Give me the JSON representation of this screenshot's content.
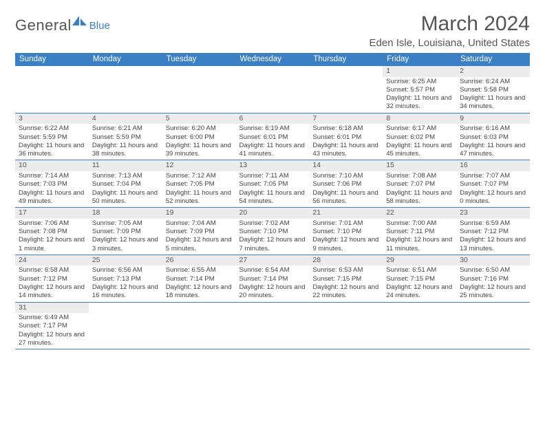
{
  "logo": {
    "general": "General",
    "blue": "Blue"
  },
  "title": "March 2024",
  "location": "Eden Isle, Louisiana, United States",
  "colors": {
    "header_bg": "#3b7fc4",
    "header_text": "#ffffff",
    "daynum_bg": "#ececec",
    "border": "#3b7fc4",
    "text": "#444444",
    "title_color": "#555555"
  },
  "daysOfWeek": [
    "Sunday",
    "Monday",
    "Tuesday",
    "Wednesday",
    "Thursday",
    "Friday",
    "Saturday"
  ],
  "weeks": [
    [
      null,
      null,
      null,
      null,
      null,
      {
        "n": "1",
        "sr": "6:25 AM",
        "ss": "5:57 PM",
        "dl": "11 hours and 32 minutes."
      },
      {
        "n": "2",
        "sr": "6:24 AM",
        "ss": "5:58 PM",
        "dl": "11 hours and 34 minutes."
      }
    ],
    [
      {
        "n": "3",
        "sr": "6:22 AM",
        "ss": "5:59 PM",
        "dl": "11 hours and 36 minutes."
      },
      {
        "n": "4",
        "sr": "6:21 AM",
        "ss": "5:59 PM",
        "dl": "11 hours and 38 minutes."
      },
      {
        "n": "5",
        "sr": "6:20 AM",
        "ss": "6:00 PM",
        "dl": "11 hours and 39 minutes."
      },
      {
        "n": "6",
        "sr": "6:19 AM",
        "ss": "6:01 PM",
        "dl": "11 hours and 41 minutes."
      },
      {
        "n": "7",
        "sr": "6:18 AM",
        "ss": "6:01 PM",
        "dl": "11 hours and 43 minutes."
      },
      {
        "n": "8",
        "sr": "6:17 AM",
        "ss": "6:02 PM",
        "dl": "11 hours and 45 minutes."
      },
      {
        "n": "9",
        "sr": "6:16 AM",
        "ss": "6:03 PM",
        "dl": "11 hours and 47 minutes."
      }
    ],
    [
      {
        "n": "10",
        "sr": "7:14 AM",
        "ss": "7:03 PM",
        "dl": "11 hours and 49 minutes."
      },
      {
        "n": "11",
        "sr": "7:13 AM",
        "ss": "7:04 PM",
        "dl": "11 hours and 50 minutes."
      },
      {
        "n": "12",
        "sr": "7:12 AM",
        "ss": "7:05 PM",
        "dl": "11 hours and 52 minutes."
      },
      {
        "n": "13",
        "sr": "7:11 AM",
        "ss": "7:05 PM",
        "dl": "11 hours and 54 minutes."
      },
      {
        "n": "14",
        "sr": "7:10 AM",
        "ss": "7:06 PM",
        "dl": "11 hours and 56 minutes."
      },
      {
        "n": "15",
        "sr": "7:08 AM",
        "ss": "7:07 PM",
        "dl": "11 hours and 58 minutes."
      },
      {
        "n": "16",
        "sr": "7:07 AM",
        "ss": "7:07 PM",
        "dl": "12 hours and 0 minutes."
      }
    ],
    [
      {
        "n": "17",
        "sr": "7:06 AM",
        "ss": "7:08 PM",
        "dl": "12 hours and 1 minute."
      },
      {
        "n": "18",
        "sr": "7:05 AM",
        "ss": "7:09 PM",
        "dl": "12 hours and 3 minutes."
      },
      {
        "n": "19",
        "sr": "7:04 AM",
        "ss": "7:09 PM",
        "dl": "12 hours and 5 minutes."
      },
      {
        "n": "20",
        "sr": "7:02 AM",
        "ss": "7:10 PM",
        "dl": "12 hours and 7 minutes."
      },
      {
        "n": "21",
        "sr": "7:01 AM",
        "ss": "7:10 PM",
        "dl": "12 hours and 9 minutes."
      },
      {
        "n": "22",
        "sr": "7:00 AM",
        "ss": "7:11 PM",
        "dl": "12 hours and 11 minutes."
      },
      {
        "n": "23",
        "sr": "6:59 AM",
        "ss": "7:12 PM",
        "dl": "12 hours and 13 minutes."
      }
    ],
    [
      {
        "n": "24",
        "sr": "6:58 AM",
        "ss": "7:12 PM",
        "dl": "12 hours and 14 minutes."
      },
      {
        "n": "25",
        "sr": "6:56 AM",
        "ss": "7:13 PM",
        "dl": "12 hours and 16 minutes."
      },
      {
        "n": "26",
        "sr": "6:55 AM",
        "ss": "7:14 PM",
        "dl": "12 hours and 18 minutes."
      },
      {
        "n": "27",
        "sr": "6:54 AM",
        "ss": "7:14 PM",
        "dl": "12 hours and 20 minutes."
      },
      {
        "n": "28",
        "sr": "6:53 AM",
        "ss": "7:15 PM",
        "dl": "12 hours and 22 minutes."
      },
      {
        "n": "29",
        "sr": "6:51 AM",
        "ss": "7:15 PM",
        "dl": "12 hours and 24 minutes."
      },
      {
        "n": "30",
        "sr": "6:50 AM",
        "ss": "7:16 PM",
        "dl": "12 hours and 25 minutes."
      }
    ],
    [
      {
        "n": "31",
        "sr": "6:49 AM",
        "ss": "7:17 PM",
        "dl": "12 hours and 27 minutes."
      },
      null,
      null,
      null,
      null,
      null,
      null
    ]
  ],
  "labels": {
    "sunrise": "Sunrise: ",
    "sunset": "Sunset: ",
    "daylight": "Daylight: "
  }
}
